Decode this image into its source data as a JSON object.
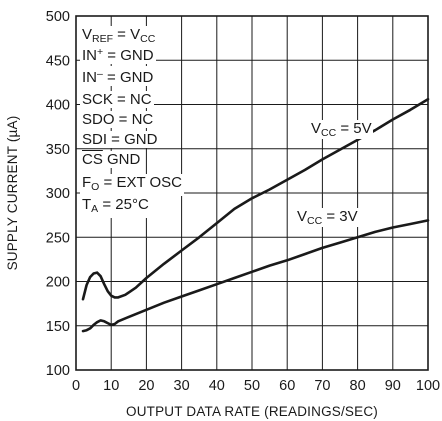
{
  "chart_data": {
    "type": "line",
    "title": "",
    "xlabel": "OUTPUT DATA RATE (READINGS/SEC)",
    "ylabel": "SUPPLY CURRENT (µA)",
    "xlim": [
      0,
      100
    ],
    "ylim": [
      100,
      500
    ],
    "x_ticks": [
      "0",
      "10",
      "20",
      "30",
      "40",
      "50",
      "60",
      "70",
      "80",
      "90",
      "100"
    ],
    "y_ticks": [
      "100",
      "150",
      "200",
      "250",
      "300",
      "350",
      "400",
      "450",
      "500"
    ],
    "grid": true,
    "series": [
      {
        "name_main": "V",
        "name_sub": "CC",
        "name_rest": " = 5V",
        "color": "#1a1a1a",
        "points": [
          [
            2,
            180
          ],
          [
            3,
            196
          ],
          [
            4,
            205
          ],
          [
            5,
            209
          ],
          [
            6,
            210
          ],
          [
            7,
            206
          ],
          [
            8,
            197
          ],
          [
            9,
            189
          ],
          [
            10,
            184
          ],
          [
            11,
            182
          ],
          [
            12,
            182
          ],
          [
            14,
            185
          ],
          [
            17,
            193
          ],
          [
            20,
            204
          ],
          [
            25,
            220
          ],
          [
            30,
            235
          ],
          [
            35,
            250
          ],
          [
            40,
            266
          ],
          [
            45,
            282
          ],
          [
            50,
            294
          ],
          [
            55,
            304
          ],
          [
            60,
            315
          ],
          [
            65,
            326
          ],
          [
            70,
            338
          ],
          [
            75,
            349
          ],
          [
            80,
            360
          ],
          [
            85,
            371
          ],
          [
            90,
            383
          ],
          [
            95,
            394
          ],
          [
            100,
            406
          ]
        ]
      },
      {
        "name_main": "V",
        "name_sub": "CC",
        "name_rest": " = 3V",
        "color": "#1a1a1a",
        "points": [
          [
            2,
            144
          ],
          [
            3,
            145
          ],
          [
            4,
            147
          ],
          [
            5,
            151
          ],
          [
            6,
            154
          ],
          [
            7,
            156
          ],
          [
            8,
            155
          ],
          [
            9,
            153
          ],
          [
            10,
            151
          ],
          [
            11,
            152
          ],
          [
            12,
            155
          ],
          [
            15,
            160
          ],
          [
            20,
            168
          ],
          [
            25,
            176
          ],
          [
            30,
            183
          ],
          [
            35,
            190
          ],
          [
            40,
            197
          ],
          [
            45,
            204
          ],
          [
            50,
            211
          ],
          [
            55,
            218
          ],
          [
            60,
            224
          ],
          [
            65,
            231
          ],
          [
            70,
            238
          ],
          [
            75,
            244
          ],
          [
            80,
            250
          ],
          [
            85,
            256
          ],
          [
            90,
            261
          ],
          [
            95,
            265
          ],
          [
            100,
            269
          ]
        ]
      }
    ],
    "conditions": [
      {
        "main": "V",
        "sub": "REF",
        "mid": " = V",
        "sub2": "CC",
        "rest": ""
      },
      {
        "main": "IN",
        "sup": "+",
        "rest": " = GND"
      },
      {
        "main": "IN",
        "sup": "–",
        "rest": " = GND"
      },
      {
        "main": "SCK = NC"
      },
      {
        "main": "SDO = NC"
      },
      {
        "main": "SDI = GND"
      },
      {
        "overline": "CS",
        "rest": " GND"
      },
      {
        "main": "F",
        "sub": "O",
        "rest": " = EXT OSC"
      },
      {
        "main": "T",
        "sub": "A",
        "rest": " = 25°C"
      }
    ]
  }
}
